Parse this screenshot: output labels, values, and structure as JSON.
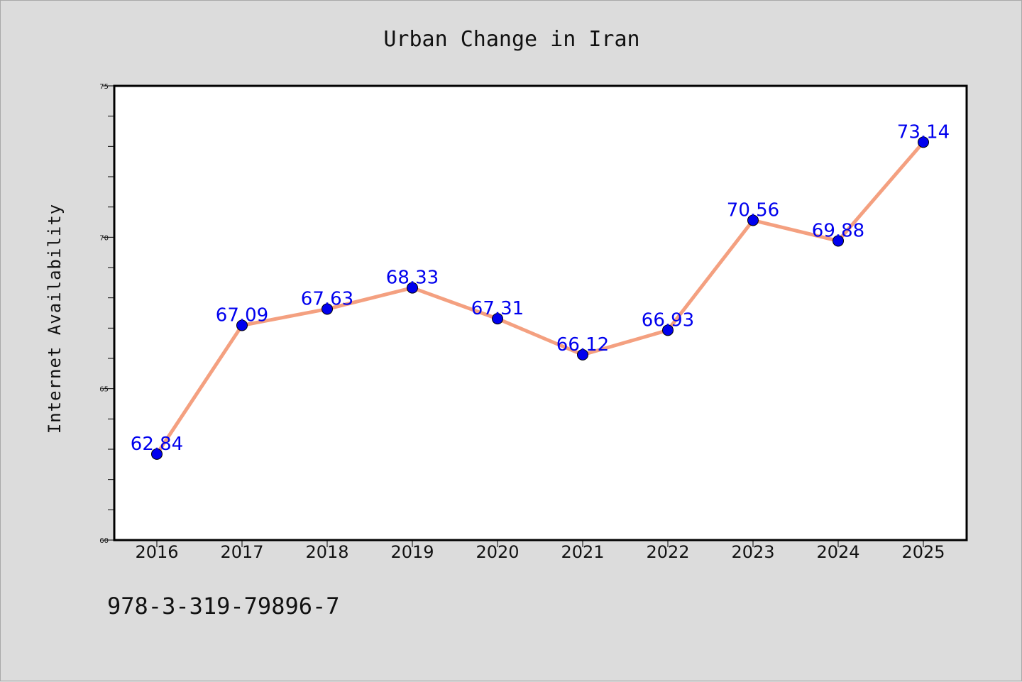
{
  "chart_data": {
    "type": "line",
    "title": "Urban Change in Iran",
    "xlabel": "",
    "ylabel": "Internet Availability",
    "x": [
      "2016",
      "2017",
      "2018",
      "2019",
      "2020",
      "2021",
      "2022",
      "2023",
      "2024",
      "2025"
    ],
    "series": [
      {
        "values": [
          62.84,
          67.09,
          67.63,
          68.33,
          67.31,
          66.12,
          66.93,
          70.56,
          69.88,
          73.14
        ],
        "labels": [
          "62.84",
          "67.09",
          "67.63",
          "68.33",
          "67.31",
          "66.12",
          "66.93",
          "70.56",
          "69.88",
          "73.14"
        ]
      }
    ],
    "ylim": [
      60,
      75
    ],
    "yticks_major": [
      "60",
      "65",
      "70",
      "75"
    ],
    "yticks_minor_step": 1,
    "grid": false,
    "legend": "none",
    "colors": {
      "line": "#f4a080",
      "marker": "#0000ee",
      "data_label": "#0000ee",
      "background": "#dcdcdc",
      "plot_background": "#ffffff"
    }
  },
  "footnote": "978-3-319-79896-7"
}
